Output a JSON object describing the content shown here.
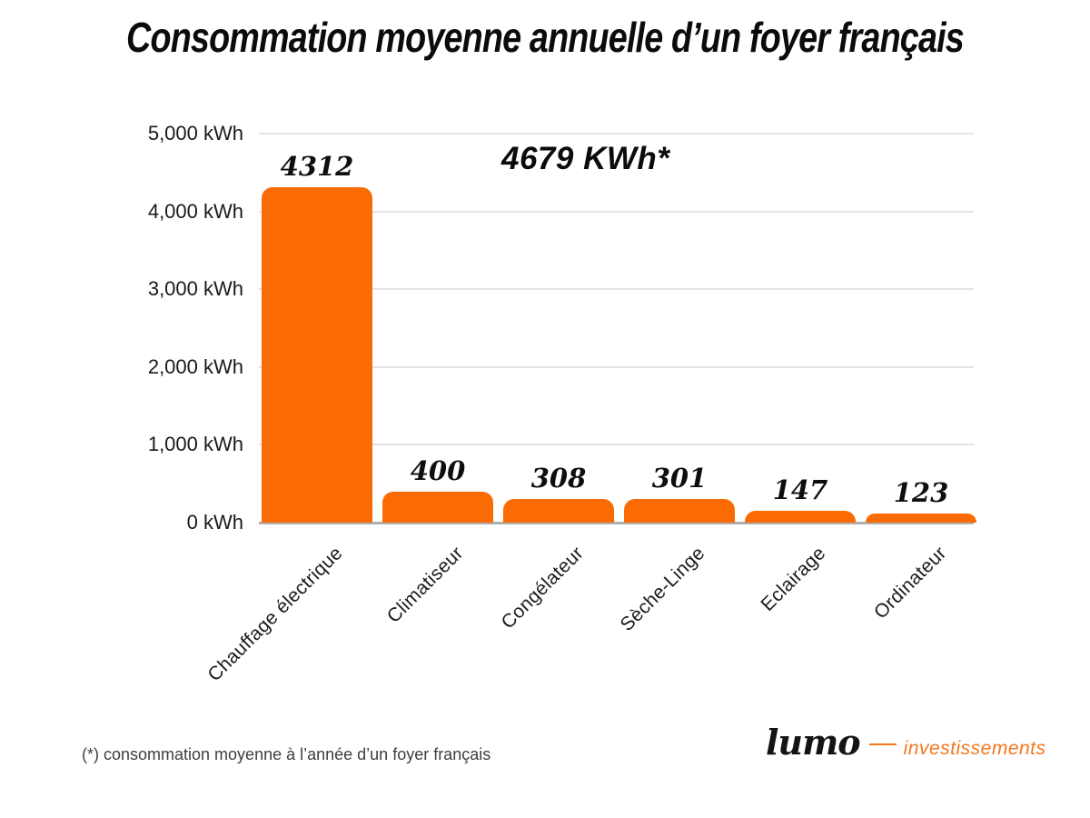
{
  "header": {
    "title": "Consommation moyenne annuelle d’un foyer français"
  },
  "chart_data": {
    "type": "bar",
    "title": "Consommation moyenne annuelle d’un foyer français",
    "categories": [
      "Chauffage électrique",
      "Climatiseur",
      "Congélateur",
      "Sèche-Linge",
      "Eclairage",
      "Ordinateur"
    ],
    "values": [
      4312,
      400,
      308,
      301,
      147,
      123
    ],
    "bar_labels": [
      "4312",
      "400",
      "308",
      "301",
      "147",
      "123"
    ],
    "annotation": "4679 KWh*",
    "y_ticks": [
      "5,000 kWh",
      "4,000 kWh",
      "3,000 kWh",
      "2,000 kWh",
      "1,000 kWh",
      "0 kWh"
    ],
    "ylabel": "",
    "xlabel": "",
    "ylim": [
      0,
      5000
    ],
    "grid": true,
    "legend": false,
    "bar_color": "#FB6B04"
  },
  "footer": {
    "footnote": "(*) consommation moyenne à l’année d’un foyer français",
    "logo": {
      "brand": "lumo",
      "suffix": "investissements"
    }
  },
  "colors": {
    "bar": "#FB6B04",
    "gridline": "#E3E3E3",
    "axis_line": "#AFAFAF",
    "title_text": "#0B0B0B",
    "tick_text": "#1A1A1A",
    "footnote_text": "#3E3E3E",
    "logo_black": "#141414",
    "logo_orange": "#F4771C",
    "background": "#FFFFFF"
  }
}
